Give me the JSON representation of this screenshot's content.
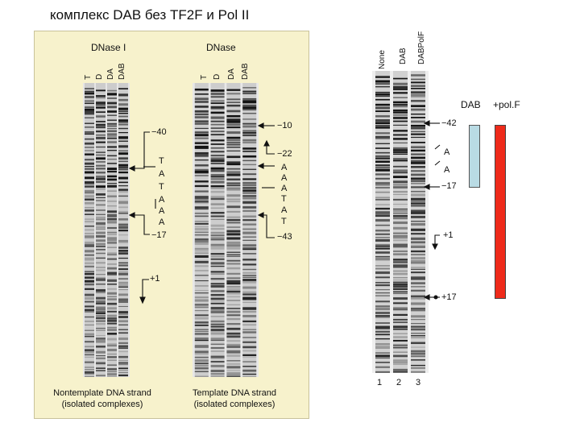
{
  "title": "комплекс DAB без TF2F и Pol II",
  "left_figure": {
    "dnase1": {
      "header": "DNase I",
      "lanes": [
        "T",
        "D",
        "DA",
        "DAB"
      ]
    },
    "dnase2": {
      "header": "DNase",
      "lanes": [
        "T",
        "D",
        "DA",
        "DAB"
      ]
    },
    "nontemplate_marks": {
      "top": "−40",
      "seq": [
        "T",
        "A",
        "T",
        "A",
        "A",
        "A"
      ],
      "bottom": "−17",
      "start": "+1"
    },
    "template_marks": {
      "top": "−10",
      "mid": "−22",
      "seq": [
        "A",
        "A",
        "A",
        "T",
        "A",
        "T"
      ],
      "bottom": "−43"
    },
    "caption_left": [
      "Nontemplate DNA strand",
      "(isolated complexes)"
    ],
    "caption_right": [
      "Template DNA strand",
      "(isolated complexes)"
    ]
  },
  "right_figure": {
    "lane_headers": [
      "None",
      "DAB",
      "DABPolF"
    ],
    "marks": {
      "m42": "−42",
      "seqA1": "A",
      "seqA2": "A",
      "m17": "−17",
      "p1": "+1",
      "p17": "+17"
    },
    "lane_numbers": [
      "1",
      "2",
      "3"
    ]
  },
  "legend": {
    "dab": "DAB",
    "polf": "+pol.F"
  },
  "colors": {
    "panel_bg": "#f7f2cc",
    "dab_bar": "#b9dbe4",
    "polf_bar": "#ee2a1a"
  }
}
